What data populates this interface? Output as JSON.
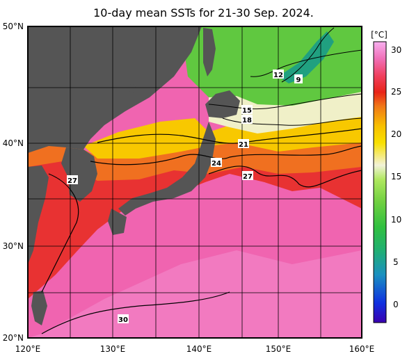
{
  "title": "10-day mean SSTs for 21-30 Sep. 2024.",
  "latitude_labels": [
    "50°N",
    "40°N",
    "30°N",
    "20°N"
  ],
  "longitude_labels": [
    "120°E",
    "130°E",
    "140°E",
    "150°E",
    "160°E"
  ],
  "colorbar": {
    "unit": "[°C]",
    "ticks": [
      "30",
      "25",
      "20",
      "15",
      "10",
      "5",
      "0"
    ],
    "range": [
      -2,
      32
    ],
    "stops": [
      "#3a00b0",
      "#1030e0",
      "#1a90c0",
      "#20b070",
      "#30c040",
      "#70d040",
      "#b0e860",
      "#f2f2d8",
      "#f8e000",
      "#f8c000",
      "#f07818",
      "#e82418",
      "#f04060",
      "#f070b8",
      "#f8b0f0"
    ]
  },
  "contour_labels": [
    "12",
    "9",
    "15",
    "18",
    "21",
    "24",
    "27",
    "27",
    "30"
  ],
  "colors": {
    "land": "#555555",
    "warm_sea": "#f064b0",
    "red_band": "#e83030",
    "orange_band": "#f07020",
    "yellow_band": "#f8c800",
    "light_band": "#f0f0c8",
    "green_band": "#60c840",
    "teal_band": "#20a080"
  }
}
